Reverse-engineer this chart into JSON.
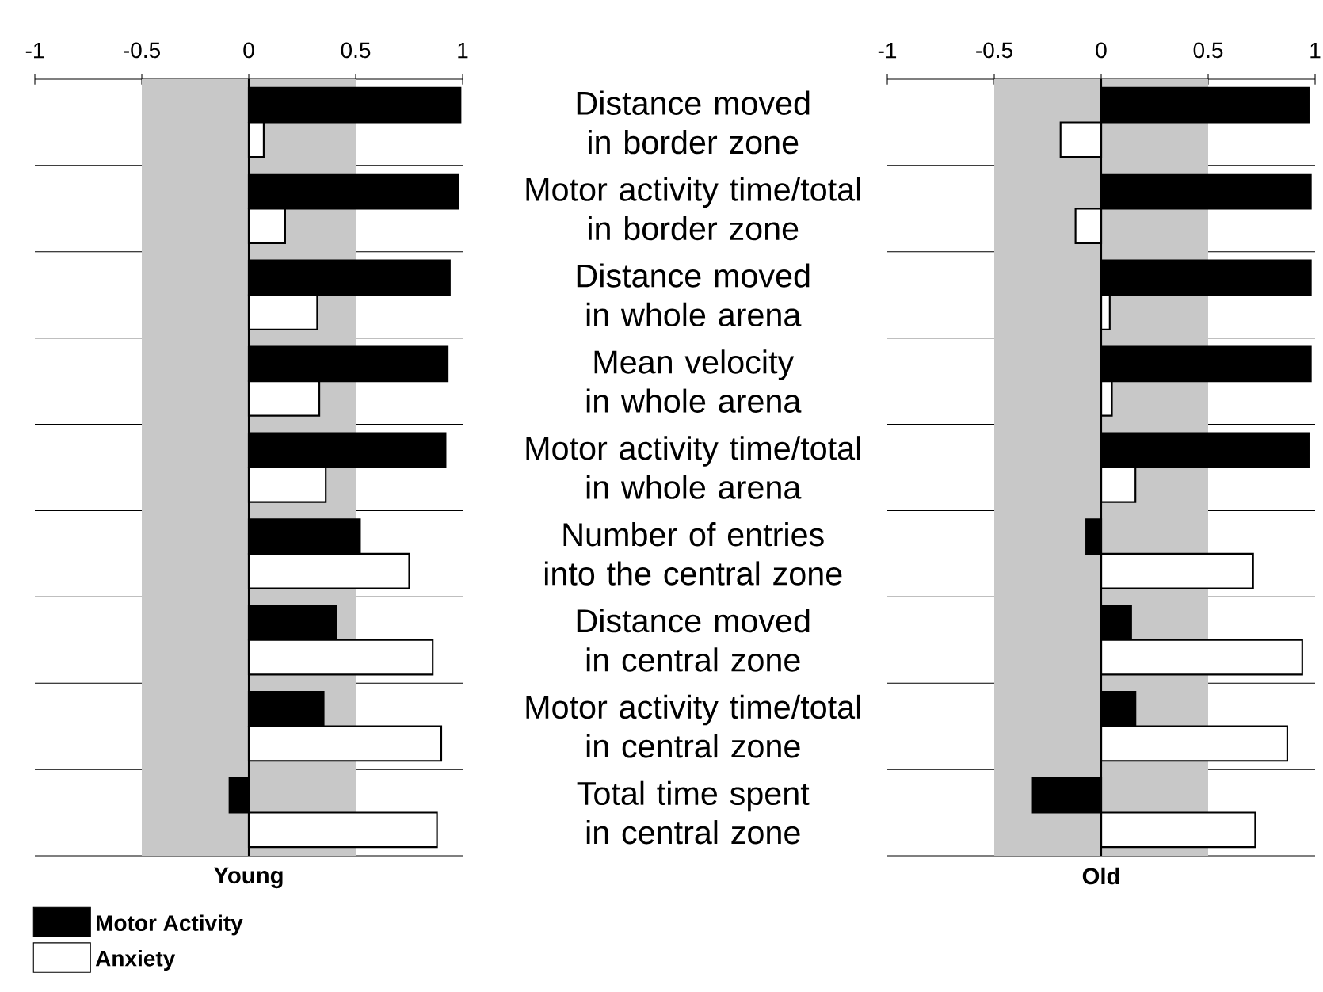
{
  "chart_data": [
    {
      "type": "bar",
      "orientation": "horizontal",
      "xlabel": "Young",
      "categories": [
        "Distance moved in border zone",
        "Motor activity time/total in border zone",
        "Distance moved in whole arena",
        "Mean velocity in whole arena",
        "Motor activity time/total in whole arena",
        "Number of entries into the central zone",
        "Distance moved in central zone",
        "Motor activity time/total in central zone",
        "Total time spent in central zone"
      ],
      "series": [
        {
          "name": "Motor Activity",
          "color": "#000000",
          "values": [
            0.99,
            0.98,
            0.94,
            0.93,
            0.92,
            0.52,
            0.41,
            0.35,
            -0.09
          ]
        },
        {
          "name": "Anxiety",
          "color": "#ffffff",
          "values": [
            0.07,
            0.17,
            0.32,
            0.33,
            0.36,
            0.75,
            0.86,
            0.9,
            0.88
          ]
        }
      ],
      "xlim": [
        -1,
        1
      ],
      "xticks": [
        -1,
        -0.5,
        0,
        0.5,
        1
      ],
      "bands": [
        {
          "axis": "x",
          "from": -0.5,
          "to": 0.5,
          "color": "#c8c8c8"
        }
      ],
      "ref_lines": [
        {
          "axis": "x",
          "value": 0
        }
      ],
      "grid": "y",
      "legend": "bottom left"
    },
    {
      "type": "bar",
      "orientation": "horizontal",
      "xlabel": "Old",
      "categories": [
        null,
        null,
        null,
        null,
        null,
        null,
        null,
        null,
        null
      ],
      "series": [
        {
          "color": "#000000",
          "values": [
            0.97,
            0.98,
            0.98,
            0.98,
            0.97,
            -0.07,
            0.14,
            0.16,
            -0.32
          ]
        },
        {
          "color": "#ffffff",
          "values": [
            -0.19,
            -0.12,
            0.04,
            0.05,
            0.16,
            0.71,
            0.94,
            0.87,
            0.72
          ]
        }
      ],
      "xlim": [
        -1,
        1
      ],
      "xticks": [
        -1,
        -0.5,
        0,
        0.5,
        1
      ],
      "bands": [
        {
          "axis": "x",
          "from": -0.5,
          "to": 0.5,
          "color": "#c8c8c8"
        }
      ],
      "ref_lines": [
        {
          "axis": "x",
          "value": 0
        }
      ],
      "grid": "y",
      "tick_labels": "x",
      "legend": false
    }
  ]
}
